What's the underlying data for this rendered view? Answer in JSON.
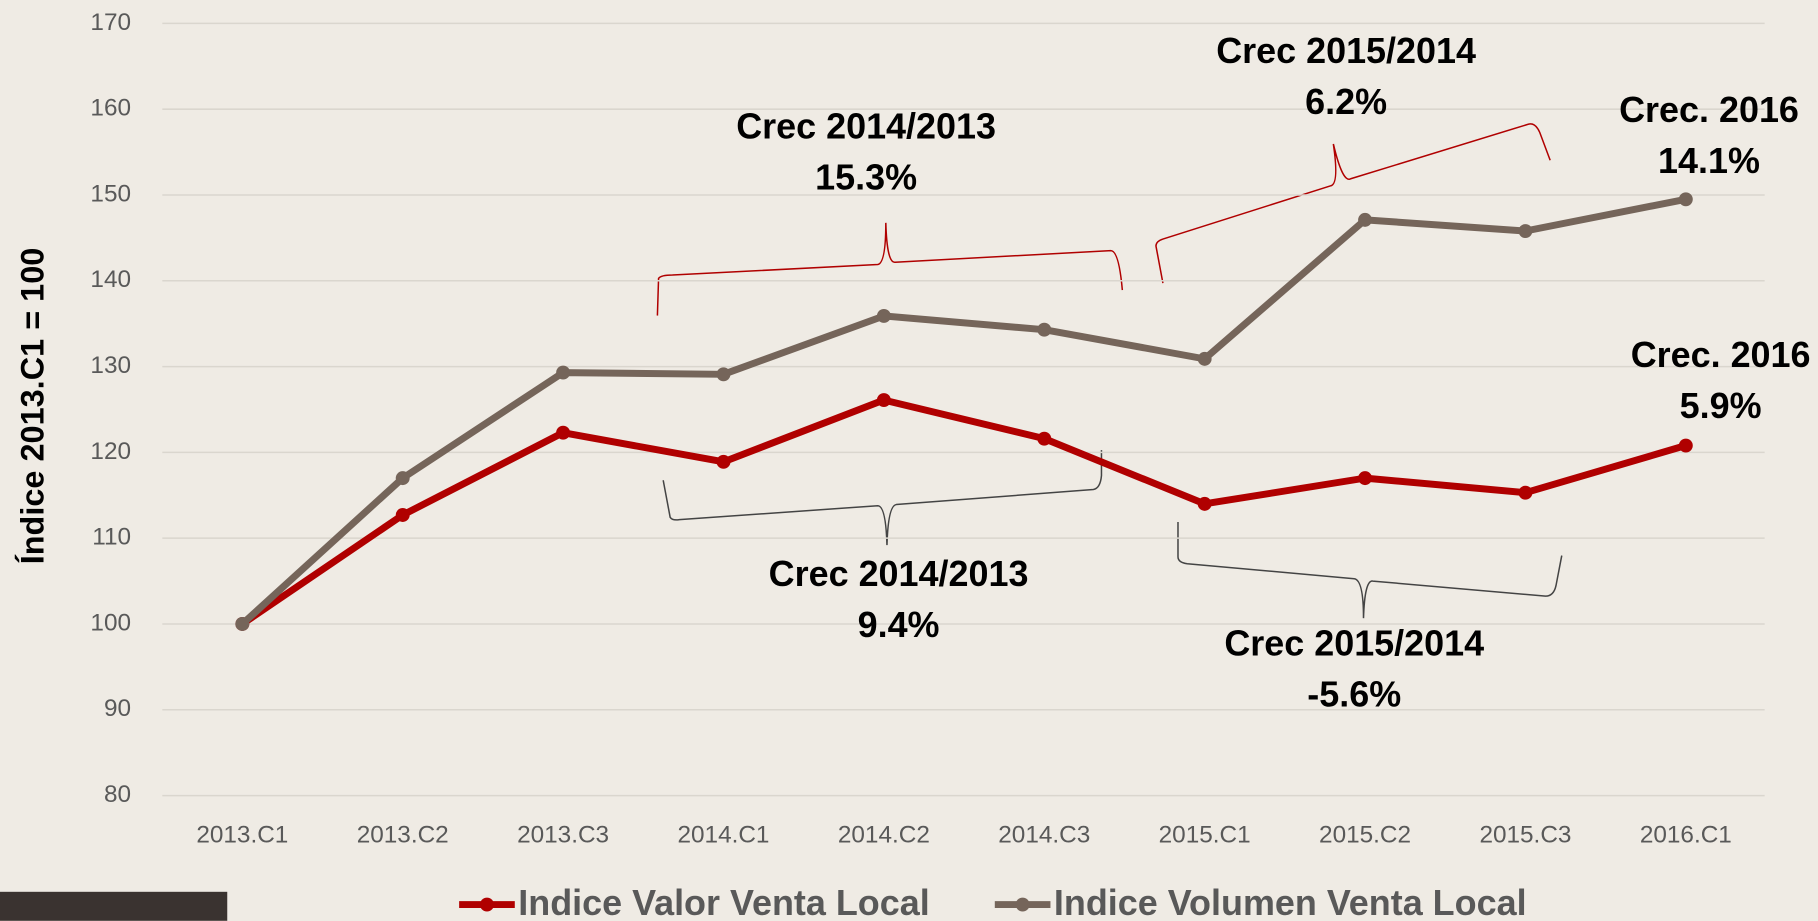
{
  "chart_data": {
    "type": "line",
    "y_label": "Índice 2013.C1 = 100",
    "categories": [
      "2013.C1",
      "2013.C2",
      "2013.C3",
      "2014.C1",
      "2014.C2",
      "2014.C3",
      "2015.C1",
      "2015.C2",
      "2015.C3",
      "2016.C1"
    ],
    "series": [
      {
        "name": "Indice Valor Venta Local",
        "color": "#b00000",
        "values": [
          100,
          112.7,
          122.3,
          118.9,
          126.1,
          121.6,
          114,
          117,
          115.3,
          120.8
        ]
      },
      {
        "name": "Indice Volumen Venta Local",
        "color": "#75655a",
        "values": [
          100,
          117,
          129.3,
          129.1,
          135.9,
          134.3,
          130.9,
          147.1,
          145.8,
          149.5
        ]
      }
    ],
    "ylim": [
      80,
      170
    ],
    "yticks": [
      80,
      90,
      100,
      110,
      120,
      130,
      140,
      150,
      160,
      170
    ],
    "grid": true,
    "annotations": [
      {
        "lines": [
          "Crec 2014/2013",
          "15.3%"
        ]
      },
      {
        "lines": [
          "Crec 2015/2014",
          "6.2%"
        ]
      },
      {
        "lines": [
          "Crec. 2016",
          "14.1%"
        ]
      },
      {
        "lines": [
          "Crec. 2016",
          "5.9%"
        ]
      },
      {
        "lines": [
          "Crec 2014/2013",
          "9.4%"
        ]
      },
      {
        "lines": [
          "Crec 2015/2014",
          "-5.6%"
        ]
      }
    ]
  }
}
